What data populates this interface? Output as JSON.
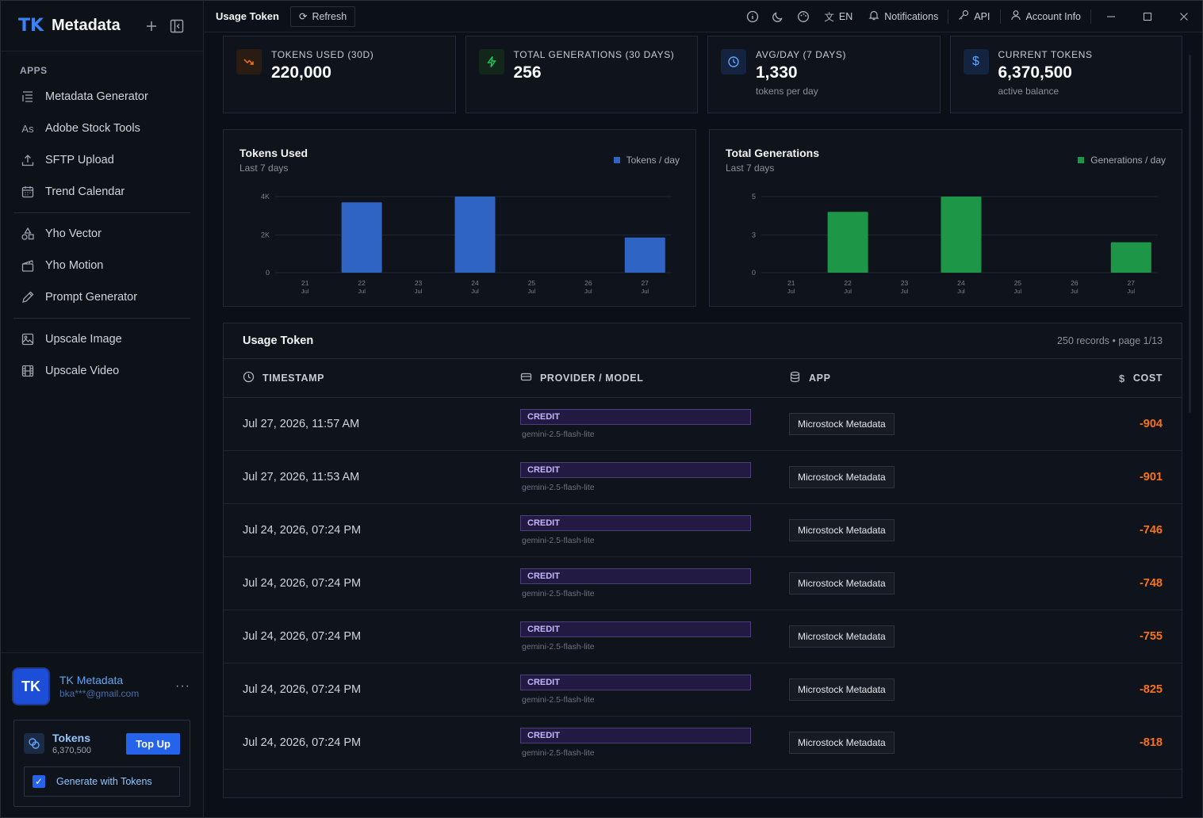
{
  "brand": {
    "logo": "TK",
    "title": "Metadata"
  },
  "sidebar": {
    "section_label": "APPS",
    "group1": [
      {
        "label": "Metadata Generator",
        "icon": "list-icon"
      },
      {
        "label": "Adobe Stock Tools",
        "icon": "adobe-stock-icon",
        "glyph": "As"
      },
      {
        "label": "SFTP Upload",
        "icon": "upload-icon"
      },
      {
        "label": "Trend Calendar",
        "icon": "calendar-icon"
      }
    ],
    "group2": [
      {
        "label": "Yho Vector",
        "icon": "shapes-icon"
      },
      {
        "label": "Yho Motion",
        "icon": "clapperboard-icon"
      },
      {
        "label": "Prompt Generator",
        "icon": "pencil-icon"
      }
    ],
    "group3": [
      {
        "label": "Upscale Image",
        "icon": "image-icon"
      },
      {
        "label": "Upscale Video",
        "icon": "film-icon"
      }
    ],
    "user": {
      "initials": "TK",
      "name": "TK Metadata",
      "email": "bka***@gmail.com",
      "more": "···"
    },
    "tokens": {
      "title": "Tokens",
      "value": "6,370,500",
      "topup_label": "Top Up",
      "generate_label": "Generate with Tokens",
      "generate_checked": true
    }
  },
  "topbar": {
    "title": "Usage Token",
    "refresh_label": "Refresh",
    "lang_label": "EN",
    "notifications_label": "Notifications",
    "api_label": "API",
    "account_label": "Account Info"
  },
  "stats": [
    {
      "label": "TOKENS USED (30D)",
      "value": "220,000",
      "sub": "",
      "icon": "trend-down-icon",
      "color": "#f97316",
      "bg": "#2a1c12"
    },
    {
      "label": "TOTAL GENERATIONS (30 DAYS)",
      "value": "256",
      "sub": "",
      "icon": "bolt-icon",
      "color": "#22c55e",
      "bg": "#12261a"
    },
    {
      "label": "AVG/DAY (7 DAYS)",
      "value": "1,330",
      "sub": "tokens per day",
      "icon": "clock-icon",
      "color": "#60a5fa",
      "bg": "#132340"
    },
    {
      "label": "CURRENT TOKENS",
      "value": "6,370,500",
      "sub": "active balance",
      "icon": "dollar-icon",
      "color": "#60a5fa",
      "bg": "#132340"
    }
  ],
  "chart_data": [
    {
      "type": "bar",
      "title": "Tokens Used",
      "subtitle": "Last 7 days",
      "legend": "Tokens / day",
      "color": "#2f63c4",
      "categories": [
        "21 Jul",
        "22 Jul",
        "23 Jul",
        "24 Jul",
        "25 Jul",
        "26 Jul",
        "27 Jul"
      ],
      "values": [
        0,
        3700,
        0,
        4000,
        0,
        0,
        1850
      ],
      "yticks": [
        "0",
        "2K",
        "4K"
      ],
      "ylim": [
        0,
        4000
      ],
      "grid": true,
      "legend_position": "top-right"
    },
    {
      "type": "bar",
      "title": "Total Generations",
      "subtitle": "Last 7 days",
      "legend": "Generations / day",
      "color": "#1e9648",
      "categories": [
        "21 Jul",
        "22 Jul",
        "23 Jul",
        "24 Jul",
        "25 Jul",
        "26 Jul",
        "27 Jul"
      ],
      "values": [
        0,
        4,
        0,
        5,
        0,
        0,
        2
      ],
      "yticks": [
        "0",
        "3",
        "5"
      ],
      "ylim": [
        0,
        5
      ],
      "grid": true,
      "legend_position": "top-right"
    }
  ],
  "table": {
    "title": "Usage Token",
    "meta": "250 records • page 1/13",
    "columns": {
      "timestamp": "TIMESTAMP",
      "provider": "PROVIDER / MODEL",
      "app": "APP",
      "cost": "COST"
    },
    "rows": [
      {
        "timestamp": "Jul 27, 2026, 11:57 AM",
        "provider": "CREDIT",
        "model": "gemini-2.5-flash-lite",
        "app": "Microstock Metadata",
        "cost": "-904"
      },
      {
        "timestamp": "Jul 27, 2026, 11:53 AM",
        "provider": "CREDIT",
        "model": "gemini-2.5-flash-lite",
        "app": "Microstock Metadata",
        "cost": "-901"
      },
      {
        "timestamp": "Jul 24, 2026, 07:24 PM",
        "provider": "CREDIT",
        "model": "gemini-2.5-flash-lite",
        "app": "Microstock Metadata",
        "cost": "-746"
      },
      {
        "timestamp": "Jul 24, 2026, 07:24 PM",
        "provider": "CREDIT",
        "model": "gemini-2.5-flash-lite",
        "app": "Microstock Metadata",
        "cost": "-748"
      },
      {
        "timestamp": "Jul 24, 2026, 07:24 PM",
        "provider": "CREDIT",
        "model": "gemini-2.5-flash-lite",
        "app": "Microstock Metadata",
        "cost": "-755"
      },
      {
        "timestamp": "Jul 24, 2026, 07:24 PM",
        "provider": "CREDIT",
        "model": "gemini-2.5-flash-lite",
        "app": "Microstock Metadata",
        "cost": "-825"
      },
      {
        "timestamp": "Jul 24, 2026, 07:24 PM",
        "provider": "CREDIT",
        "model": "gemini-2.5-flash-lite",
        "app": "Microstock Metadata",
        "cost": "-818"
      }
    ]
  }
}
